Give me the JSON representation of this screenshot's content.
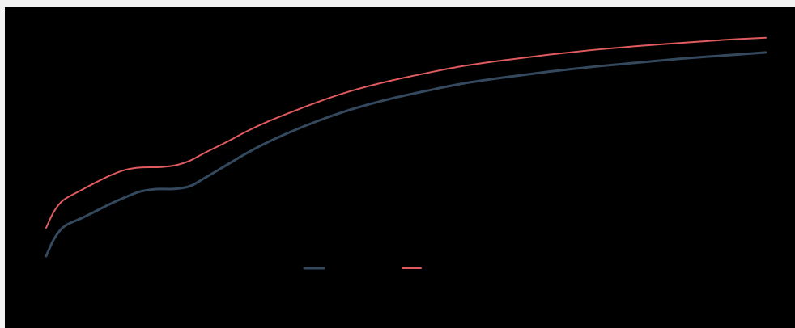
{
  "chart_data": {
    "type": "line",
    "title": "",
    "xlabel": "",
    "ylabel": "",
    "x": [
      0,
      0.01,
      0.02,
      0.03,
      0.05,
      0.07,
      0.09,
      0.11,
      0.13,
      0.15,
      0.16,
      0.18,
      0.2,
      0.22,
      0.25,
      0.28,
      0.31,
      0.35,
      0.39,
      0.43,
      0.48,
      0.53,
      0.58,
      0.64,
      0.7,
      0.76,
      0.82,
      0.88,
      0.94,
      1.0
    ],
    "series": [
      {
        "color": "#34495e",
        "values": [
          0.0,
          0.1,
          0.165,
          0.2,
          0.24,
          0.285,
          0.33,
          0.37,
          0.405,
          0.42,
          0.422,
          0.423,
          0.44,
          0.49,
          0.57,
          0.65,
          0.72,
          0.8,
          0.87,
          0.93,
          0.99,
          1.04,
          1.085,
          1.125,
          1.16,
          1.19,
          1.215,
          1.24,
          1.26,
          1.28
        ]
      },
      {
        "color": "#e05a5e",
        "values": [
          0.0,
          0.1,
          0.165,
          0.2,
          0.25,
          0.3,
          0.345,
          0.38,
          0.395,
          0.397,
          0.398,
          0.41,
          0.44,
          0.49,
          0.56,
          0.635,
          0.7,
          0.775,
          0.845,
          0.905,
          0.965,
          1.015,
          1.06,
          1.1,
          1.135,
          1.165,
          1.19,
          1.21,
          1.23,
          1.245
        ]
      }
    ],
    "grid": false,
    "legend_position": "bottom-center"
  }
}
